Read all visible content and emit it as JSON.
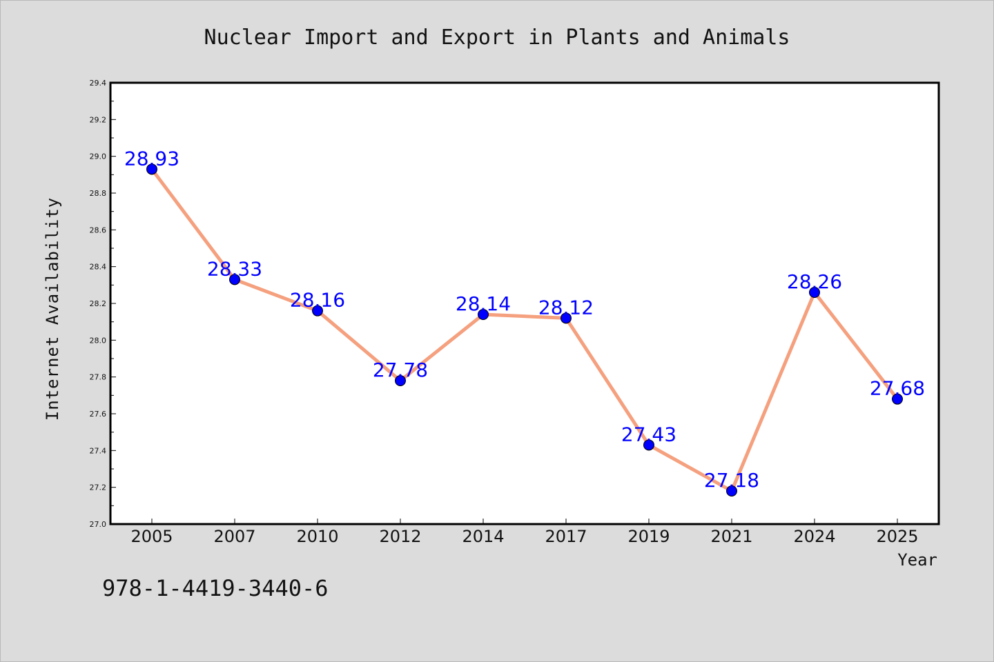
{
  "chart_data": {
    "type": "line",
    "title": "Nuclear Import and Export in Plants and Animals",
    "xlabel": "Year",
    "ylabel": "Internet Availability",
    "categories": [
      "2005",
      "2007",
      "2010",
      "2012",
      "2014",
      "2017",
      "2019",
      "2021",
      "2024",
      "2025"
    ],
    "series": [
      {
        "values": [
          28.93,
          28.33,
          28.16,
          27.78,
          28.14,
          28.12,
          27.43,
          27.18,
          28.26,
          27.68
        ]
      }
    ],
    "data_labels": [
      "28.93",
      "28.33",
      "28.16",
      "27.78",
      "28.14",
      "28.12",
      "27.43",
      "27.18",
      "28.26",
      "27.68"
    ],
    "ylim": [
      27.0,
      29.4
    ],
    "yticks": [
      "27.0",
      "27.2",
      "27.4",
      "27.6",
      "27.8",
      "28.0",
      "28.2",
      "28.4",
      "28.6",
      "28.8",
      "29.0",
      "29.2",
      "29.4"
    ],
    "grid": false,
    "legend": "none",
    "colors": {
      "line": "#f5a07e",
      "marker": "#0000ff",
      "label": "#0000ff",
      "plot_background": "#ffffff",
      "page_background": "#dcdcdc"
    }
  },
  "footer": {
    "isbn": "978-1-4419-3440-6"
  }
}
